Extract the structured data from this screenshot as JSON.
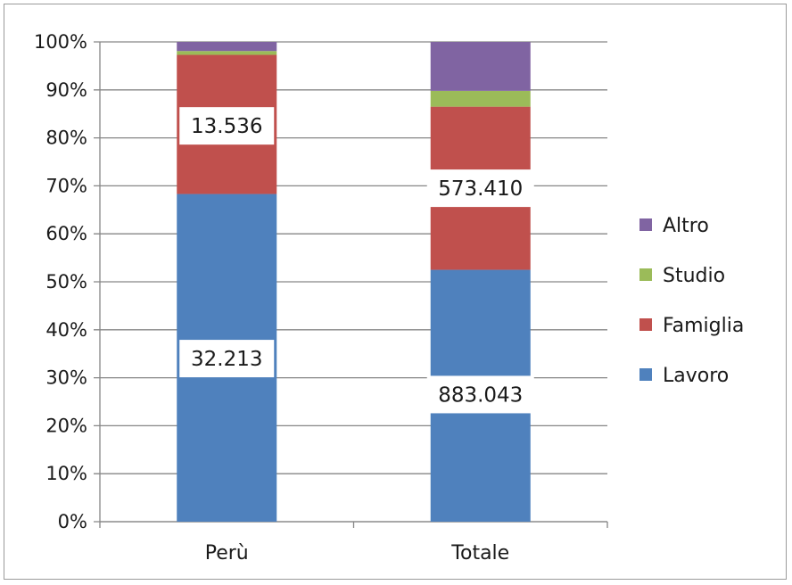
{
  "chart_data": {
    "type": "bar",
    "stacked": true,
    "percent_stacked": true,
    "title": "",
    "xlabel": "",
    "ylabel": "",
    "categories": [
      "Perù",
      "Totale"
    ],
    "ylim": [
      0,
      100
    ],
    "yticks": [
      "0%",
      "10%",
      "20%",
      "30%",
      "40%",
      "50%",
      "60%",
      "70%",
      "80%",
      "90%",
      "100%"
    ],
    "grid": true,
    "legend_position": "right",
    "series": [
      {
        "name": "Lavoro",
        "color": "#4f81bd",
        "values": [
          68.3,
          52.5
        ]
      },
      {
        "name": "Famiglia",
        "color": "#c0504d",
        "values": [
          29.0,
          34.0
        ]
      },
      {
        "name": "Studio",
        "color": "#9bbb59",
        "values": [
          0.8,
          3.3
        ]
      },
      {
        "name": "Altro",
        "color": "#8064a2",
        "values": [
          1.9,
          10.2
        ]
      }
    ],
    "data_labels": [
      {
        "category": "Perù",
        "series": "Famiglia",
        "text": "13.536",
        "y": 82.5
      },
      {
        "category": "Perù",
        "series": "Lavoro",
        "text": "32.213",
        "y": 34
      },
      {
        "category": "Totale",
        "series": "Famiglia",
        "text": "573.410",
        "y": 69.5
      },
      {
        "category": "Totale",
        "series": "Lavoro",
        "text": "883.043",
        "y": 26.5
      }
    ]
  }
}
